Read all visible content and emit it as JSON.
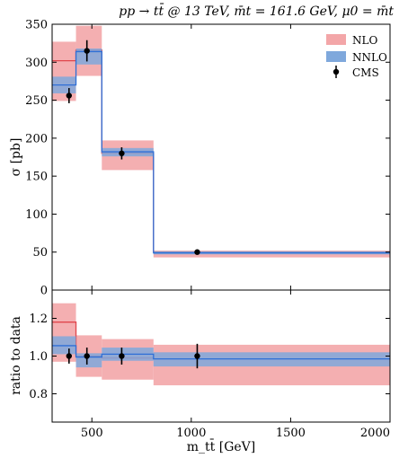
{
  "title": "pp → tt̄ @ 13 TeV, m̄t = 161.6 GeV, μ0 = m̄t",
  "colors": {
    "nlo_fill": "#f3a6a8",
    "nlo_line": "#e0464c",
    "nnlo_fill": "#7fa8dc",
    "nnlo_line": "#2f6fd6",
    "data": "#000000"
  },
  "chart_data": [
    {
      "type": "step",
      "panel": "main",
      "xlabel": "",
      "ylabel": "σ [pb]",
      "xlim": [
        300,
        2000
      ],
      "ylim": [
        0,
        350
      ],
      "x_ticks": [
        500,
        1000,
        1500,
        2000
      ],
      "y_ticks": [
        0,
        50,
        100,
        150,
        200,
        250,
        300,
        350
      ],
      "bins": [
        [
          300,
          420
        ],
        [
          420,
          550
        ],
        [
          550,
          810
        ],
        [
          810,
          2000
        ]
      ],
      "legend": {
        "position": "top-right",
        "entries": [
          "NLO",
          "NNLO",
          "CMS"
        ]
      },
      "series": [
        {
          "name": "NLO",
          "style": "band",
          "central": [
            302,
            316,
            180,
            50
          ],
          "low": [
            249,
            282,
            158,
            43
          ],
          "high": [
            327,
            348,
            197,
            52
          ]
        },
        {
          "name": "NNLO",
          "style": "band",
          "central": [
            270,
            314,
            182,
            49
          ],
          "low": [
            259,
            297,
            176,
            47
          ],
          "high": [
            281,
            318,
            187,
            51
          ]
        },
        {
          "name": "CMS",
          "style": "points",
          "x": [
            385,
            475,
            650,
            1030
          ],
          "y": [
            256,
            315,
            180,
            50
          ],
          "err": [
            10,
            14,
            8,
            3
          ]
        }
      ]
    },
    {
      "type": "step",
      "panel": "ratio",
      "xlabel": "m_tt̄ [GeV]",
      "ylabel": "ratio to data",
      "xlim": [
        300,
        2000
      ],
      "ylim": [
        0.65,
        1.35
      ],
      "x_ticks": [
        500,
        1000,
        1500,
        2000
      ],
      "y_ticks": [
        0.8,
        1.0,
        1.2
      ],
      "bins": [
        [
          300,
          420
        ],
        [
          420,
          550
        ],
        [
          550,
          810
        ],
        [
          810,
          2000
        ]
      ],
      "series": [
        {
          "name": "NLO",
          "style": "band",
          "central": [
            1.18,
            1.0,
            0.99,
            0.985
          ],
          "low": [
            0.97,
            0.89,
            0.875,
            0.845
          ],
          "high": [
            1.28,
            1.11,
            1.09,
            1.06
          ]
        },
        {
          "name": "NNLO",
          "style": "band",
          "central": [
            1.055,
            0.995,
            1.01,
            0.985
          ],
          "low": [
            1.01,
            0.94,
            0.975,
            0.945
          ],
          "high": [
            1.105,
            1.015,
            1.045,
            1.02
          ]
        },
        {
          "name": "CMS",
          "style": "points",
          "x": [
            385,
            475,
            650,
            1030
          ],
          "y": [
            1.0,
            1.0,
            1.0,
            1.0
          ],
          "err": [
            0.04,
            0.045,
            0.045,
            0.065
          ]
        }
      ]
    }
  ]
}
